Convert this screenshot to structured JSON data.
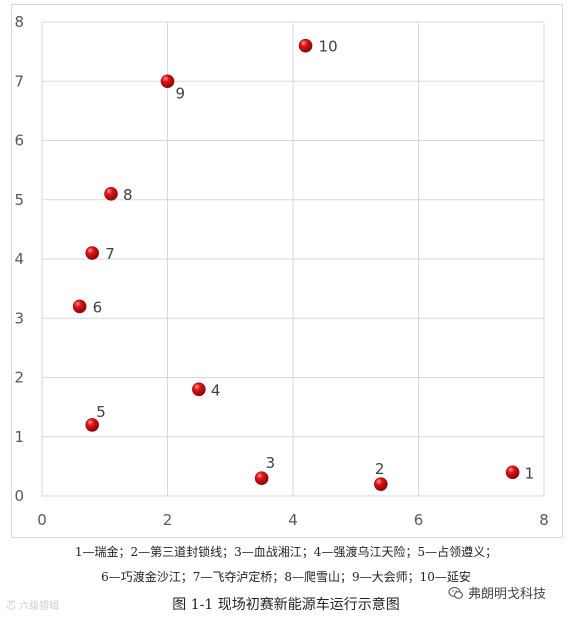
{
  "chart_data": {
    "type": "scatter",
    "title": "",
    "xlabel": "",
    "ylabel": "",
    "xlim": [
      0,
      8
    ],
    "ylim": [
      0,
      8
    ],
    "x_ticks": [
      "0",
      "2",
      "4",
      "6",
      "8"
    ],
    "y_ticks": [
      "0",
      "1",
      "2",
      "3",
      "4",
      "5",
      "6",
      "7",
      "8"
    ],
    "grid": true,
    "marker_color": "#e0151b",
    "points": [
      {
        "label": "1",
        "x": 7.5,
        "y": 0.4
      },
      {
        "label": "2",
        "x": 5.4,
        "y": 0.2
      },
      {
        "label": "3",
        "x": 3.5,
        "y": 0.3
      },
      {
        "label": "4",
        "x": 2.5,
        "y": 1.8
      },
      {
        "label": "5",
        "x": 0.8,
        "y": 1.2
      },
      {
        "label": "6",
        "x": 0.6,
        "y": 3.2
      },
      {
        "label": "7",
        "x": 0.8,
        "y": 4.1
      },
      {
        "label": "8",
        "x": 1.1,
        "y": 5.1
      },
      {
        "label": "9",
        "x": 2.0,
        "y": 7.0
      },
      {
        "label": "10",
        "x": 4.2,
        "y": 7.6
      }
    ]
  },
  "legend": {
    "line1": "1—瑞金；2—第三道封锁线；3—血战湘江；4—强渡乌江天险；5—占领遵义；",
    "line2": "6—巧渡金沙江；7—飞夺泸定桥；8—爬雪山；9—大会师；10—延安"
  },
  "caption": "图 1-1  现场初赛新能源车运行示意图",
  "watermark_left": "芯 六级猎辑",
  "watermark_right": "弗朗明戈科技",
  "watermark_right_icon": "wechat-icon"
}
